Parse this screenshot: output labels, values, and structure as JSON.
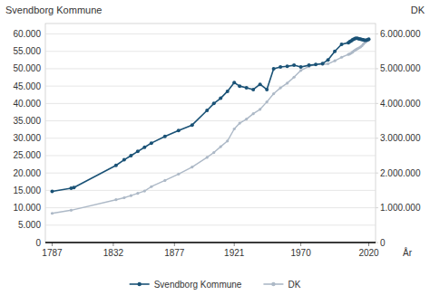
{
  "chart_data": {
    "type": "line",
    "ylabel": "Svendborg Kommune",
    "y2label": "DK",
    "xlabel": "År",
    "grid": true,
    "legend": "bottom",
    "xlim": [
      1782,
      2025
    ],
    "xticks": [
      1787,
      1832,
      1877,
      1921,
      1970,
      2020
    ],
    "ylim": [
      0,
      63000
    ],
    "yticks": [
      0,
      {
        "value": 5000,
        "label": "5.000"
      },
      {
        "value": 10000,
        "label": "10.000"
      },
      {
        "value": 15000,
        "label": "15.000"
      },
      {
        "value": 20000,
        "label": "20.000"
      },
      {
        "value": 25000,
        "label": "25.000"
      },
      {
        "value": 30000,
        "label": "30.000"
      },
      {
        "value": 35000,
        "label": "35.000"
      },
      {
        "value": 40000,
        "label": "40.000"
      },
      {
        "value": 45000,
        "label": "45.000"
      },
      {
        "value": 50000,
        "label": "50.000"
      },
      {
        "value": 55000,
        "label": "55.000"
      },
      {
        "value": 60000,
        "label": "60.000"
      }
    ],
    "y2lim": [
      0,
      6300000
    ],
    "y2ticks": [
      0,
      {
        "value": 1000000,
        "label": "1.000.000"
      },
      {
        "value": 2000000,
        "label": "2.000.000"
      },
      {
        "value": 3000000,
        "label": "3.000.000"
      },
      {
        "value": 4000000,
        "label": "4.000.000"
      },
      {
        "value": 5000000,
        "label": "5.000.000"
      },
      {
        "value": 6000000,
        "label": "6.000.000"
      }
    ],
    "series": [
      {
        "name": "Svendborg Kommune",
        "color": "#1a5276",
        "marker": "circle",
        "x": [
          1787,
          1801,
          1803,
          1834,
          1840,
          1845,
          1850,
          1855,
          1860,
          1870,
          1880,
          1890,
          1901,
          1906,
          1911,
          1916,
          1921,
          1925,
          1930,
          1935,
          1940,
          1945,
          1950,
          1955,
          1960,
          1965,
          1970,
          1976,
          1981,
          1986,
          1990,
          1995,
          2000,
          2005,
          2006,
          2007,
          2008,
          2009,
          2010,
          2011,
          2012,
          2013,
          2014,
          2015,
          2016,
          2017,
          2018,
          2019,
          2020
        ],
        "values": [
          14700,
          15600,
          15800,
          22200,
          23800,
          25000,
          26200,
          27400,
          28600,
          30500,
          32200,
          33800,
          38000,
          40000,
          41500,
          43500,
          46000,
          45000,
          44500,
          44000,
          45500,
          44000,
          50000,
          50500,
          50700,
          51000,
          50500,
          51000,
          51200,
          51500,
          52500,
          55000,
          57000,
          57500,
          57800,
          58000,
          58300,
          58500,
          58700,
          58800,
          58700,
          58600,
          58500,
          58400,
          58300,
          58200,
          58200,
          58300,
          58500
        ]
      },
      {
        "name": "DK",
        "color": "#adb9c7",
        "marker": "circle",
        "axis": "y2",
        "x": [
          1787,
          1801,
          1834,
          1840,
          1845,
          1850,
          1855,
          1860,
          1870,
          1880,
          1890,
          1901,
          1906,
          1911,
          1916,
          1921,
          1925,
          1930,
          1935,
          1940,
          1945,
          1950,
          1955,
          1960,
          1965,
          1970,
          1976,
          1981,
          1986,
          1990,
          1995,
          2000,
          2005,
          2006,
          2007,
          2008,
          2009,
          2010,
          2011,
          2012,
          2013,
          2014,
          2015,
          2016,
          2017,
          2018,
          2019,
          2020
        ],
        "values": [
          840000,
          929000,
          1231000,
          1289000,
          1350000,
          1414000,
          1482000,
          1608000,
          1784000,
          1969000,
          2172000,
          2449000,
          2589000,
          2757000,
          2921000,
          3267000,
          3435000,
          3551000,
          3706000,
          3832000,
          4045000,
          4281000,
          4449000,
          4585000,
          4758000,
          4951000,
          5065000,
          5123000,
          5121000,
          5141000,
          5228000,
          5330000,
          5411000,
          5427000,
          5447000,
          5476000,
          5511000,
          5535000,
          5561000,
          5581000,
          5603000,
          5627000,
          5659000,
          5707000,
          5749000,
          5781000,
          5806000,
          5823000
        ]
      }
    ]
  }
}
